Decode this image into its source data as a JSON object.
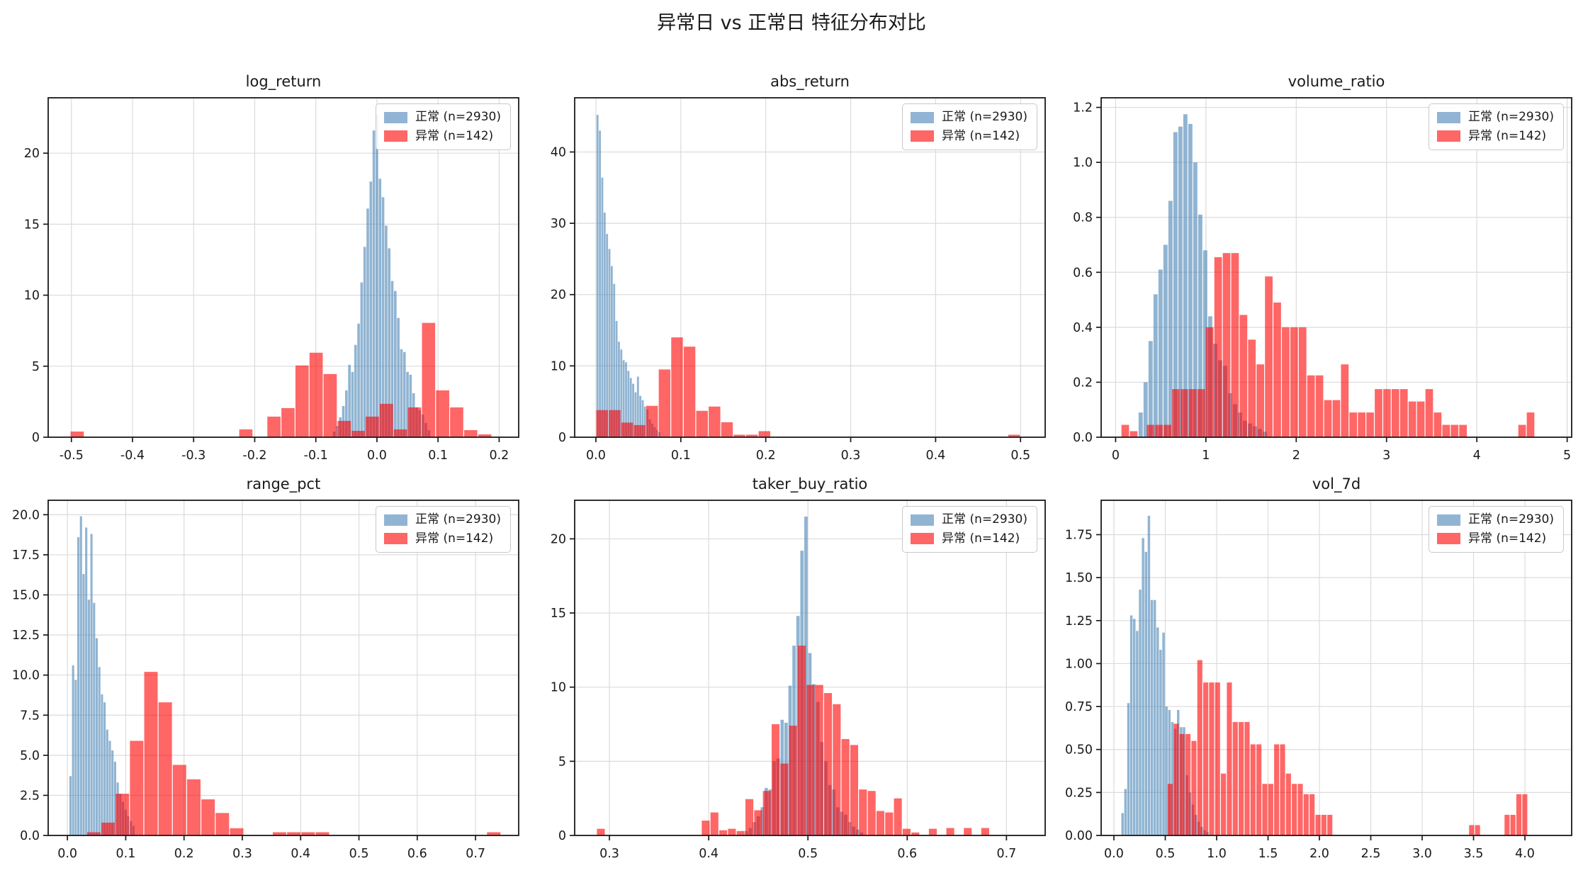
{
  "figure_title": "异常日 vs 正常日 特征分布对比",
  "legend": {
    "normal_label": "正常 (n=2930)",
    "abnormal_label": "异常 (n=142)"
  },
  "colors": {
    "normal": "#4682B4",
    "abnormal": "#FF0000",
    "bar_alpha": 0.6,
    "normal_legend": "#92B4D4",
    "abnormal_legend": "#FF6666",
    "grid": "#DBDBDB",
    "axis": "#1A1A1A"
  },
  "chart_data": [
    {
      "type": "histogram",
      "title": "log_return",
      "xlabel": "",
      "ylabel": "",
      "grid": true,
      "legend_position": "upper right",
      "xlim": [
        -0.538,
        0.232
      ],
      "ylim": [
        0,
        23.9
      ],
      "xtick_vals": [
        -0.5,
        -0.4,
        -0.3,
        -0.2,
        -0.1,
        0.0,
        0.1,
        0.2
      ],
      "xtick_labels": [
        "-0.5",
        "-0.4",
        "-0.3",
        "-0.2",
        "-0.1",
        "0.0",
        "0.1",
        "0.2"
      ],
      "ytick_vals": [
        0,
        5,
        10,
        15,
        20
      ],
      "ytick_labels": [
        "0",
        "5",
        "10",
        "15",
        "20"
      ],
      "series": [
        {
          "name": "正常 (n=2930)",
          "color_key": "normal",
          "start": -0.0725,
          "bin_width": 0.005,
          "heights": [
            0.4,
            0.8,
            1.4,
            2.2,
            3.3,
            5.1,
            4.6,
            6.5,
            8.0,
            10.9,
            13.4,
            16.1,
            18.0,
            21.6,
            22.7,
            18.2,
            16.9,
            14.9,
            13.3,
            11.0,
            10.3,
            8.4,
            6.2,
            6.0,
            4.6,
            4.4,
            3.1,
            2.1,
            1.9,
            1.6,
            1.0,
            0.5
          ]
        },
        {
          "name": "异常 (n=142)",
          "color_key": "abnormal",
          "start": -0.502,
          "bin_width": 0.023,
          "heights": [
            0.4,
            0,
            0,
            0,
            0,
            0,
            0,
            0,
            0,
            0,
            0,
            0,
            0.55,
            0,
            1.45,
            2.05,
            5.05,
            5.95,
            4.45,
            1.15,
            0.45,
            1.45,
            2.35,
            0.55,
            2.1,
            8.05,
            3.3,
            2.1,
            0.5,
            0.2
          ]
        }
      ]
    },
    {
      "type": "histogram",
      "title": "abs_return",
      "xlabel": "",
      "ylabel": "",
      "grid": true,
      "legend_position": "upper right",
      "xlim": [
        -0.025,
        0.529
      ],
      "ylim": [
        0,
        47.6
      ],
      "xtick_vals": [
        0.0,
        0.1,
        0.2,
        0.3,
        0.4,
        0.5
      ],
      "xtick_labels": [
        "0.0",
        "0.1",
        "0.2",
        "0.3",
        "0.4",
        "0.5"
      ],
      "ytick_vals": [
        0,
        10,
        20,
        30,
        40
      ],
      "ytick_labels": [
        "0",
        "10",
        "20",
        "30",
        "40"
      ],
      "series": [
        {
          "name": "正常 (n=2930)",
          "color_key": "normal",
          "start": 0.0005,
          "bin_width": 0.0028,
          "heights": [
            45.2,
            43.0,
            36.4,
            31.5,
            28.5,
            26.4,
            24.0,
            21.5,
            16.3,
            13.4,
            12.3,
            10.8,
            10.5,
            9.3,
            8.3,
            7.5,
            6.3,
            8.5,
            5.8,
            5.2,
            4.3,
            3.9,
            2.5,
            1.9,
            1.4,
            1.0,
            0.7
          ]
        },
        {
          "name": "异常 (n=142)",
          "color_key": "abnormal",
          "start": 0.0,
          "bin_width": 0.0147,
          "heights": [
            3.8,
            3.8,
            2.05,
            1.7,
            4.4,
            9.5,
            14.0,
            12.7,
            3.7,
            4.3,
            2.1,
            0.35,
            0.35,
            0.85,
            0,
            0,
            0,
            0,
            0,
            0,
            0,
            0,
            0,
            0,
            0,
            0,
            0,
            0,
            0,
            0,
            0,
            0,
            0,
            0.35
          ]
        }
      ]
    },
    {
      "type": "histogram",
      "title": "volume_ratio",
      "xlabel": "",
      "ylabel": "",
      "grid": true,
      "legend_position": "upper right",
      "xlim": [
        -0.16,
        5.05
      ],
      "ylim": [
        0,
        1.235
      ],
      "xtick_vals": [
        0,
        1,
        2,
        3,
        4,
        5
      ],
      "xtick_labels": [
        "0",
        "1",
        "2",
        "3",
        "4",
        "5"
      ],
      "ytick_vals": [
        0.0,
        0.2,
        0.4,
        0.6,
        0.8,
        1.0,
        1.2
      ],
      "ytick_labels": [
        "0.0",
        "0.2",
        "0.4",
        "0.6",
        "0.8",
        "1.0",
        "1.2"
      ],
      "series": [
        {
          "name": "正常 (n=2930)",
          "color_key": "normal",
          "start": 0.25,
          "bin_width": 0.055,
          "heights": [
            0.09,
            0.2,
            0.35,
            0.52,
            0.61,
            0.7,
            0.86,
            1.11,
            1.13,
            1.175,
            1.14,
            1.0,
            0.81,
            0.68,
            0.44,
            0.34,
            0.28,
            0.26,
            0.16,
            0.12,
            0.09,
            0.06,
            0.05,
            0.04,
            0.03,
            0.02
          ]
        },
        {
          "name": "异常 (n=142)",
          "color_key": "abnormal",
          "start": 0.06,
          "bin_width": 0.0935,
          "heights": [
            0.045,
            0.022,
            0,
            0.045,
            0.045,
            0.045,
            0.175,
            0.175,
            0.175,
            0.175,
            0.4,
            0.655,
            0.67,
            0.67,
            0.445,
            0.355,
            0.265,
            0.585,
            0.49,
            0.4,
            0.4,
            0.4,
            0.225,
            0.225,
            0.135,
            0.135,
            0.265,
            0.09,
            0.09,
            0.09,
            0.175,
            0.175,
            0.175,
            0.175,
            0.13,
            0.13,
            0.175,
            0.09,
            0.045,
            0.045,
            0.045,
            0,
            0,
            0,
            0,
            0,
            0,
            0.045,
            0.09,
            0
          ]
        }
      ]
    },
    {
      "type": "histogram",
      "title": "range_pct",
      "xlabel": "",
      "ylabel": "",
      "grid": true,
      "legend_position": "upper right",
      "xlim": [
        -0.033,
        0.774
      ],
      "ylim": [
        0,
        20.9
      ],
      "xtick_vals": [
        0.0,
        0.1,
        0.2,
        0.3,
        0.4,
        0.5,
        0.6,
        0.7
      ],
      "xtick_labels": [
        "0.0",
        "0.1",
        "0.2",
        "0.3",
        "0.4",
        "0.5",
        "0.6",
        "0.7"
      ],
      "ytick_vals": [
        0.0,
        2.5,
        5.0,
        7.5,
        10.0,
        12.5,
        15.0,
        17.5,
        20.0
      ],
      "ytick_labels": [
        "0.0",
        "2.5",
        "5.0",
        "7.5",
        "10.0",
        "12.5",
        "15.0",
        "17.5",
        "20.0"
      ],
      "series": [
        {
          "name": "正常 (n=2930)",
          "color_key": "normal",
          "start": 0.003,
          "bin_width": 0.0045,
          "heights": [
            3.7,
            10.6,
            9.7,
            18.6,
            19.9,
            16.3,
            19.2,
            14.7,
            18.8,
            14.5,
            12.3,
            10.5,
            8.8,
            8.3,
            6.6,
            5.9,
            5.3,
            4.6,
            3.3,
            2.6,
            2.1,
            1.6,
            1.2,
            0.9,
            0.6
          ]
        },
        {
          "name": "异常 (n=142)",
          "color_key": "abnormal",
          "start": 0.033,
          "bin_width": 0.0245,
          "heights": [
            0.2,
            0.8,
            2.6,
            5.9,
            10.2,
            8.3,
            4.4,
            3.5,
            2.25,
            1.4,
            0.45,
            0,
            0,
            0.2,
            0.2,
            0.2,
            0.2,
            0,
            0,
            0,
            0,
            0,
            0,
            0,
            0,
            0,
            0,
            0,
            0.2
          ]
        }
      ]
    },
    {
      "type": "histogram",
      "title": "taker_buy_ratio",
      "xlabel": "",
      "ylabel": "",
      "grid": true,
      "legend_position": "upper right",
      "xlim": [
        0.265,
        0.739
      ],
      "ylim": [
        0,
        22.6
      ],
      "xtick_vals": [
        0.3,
        0.4,
        0.5,
        0.6,
        0.7
      ],
      "xtick_labels": [
        "0.3",
        "0.4",
        "0.5",
        "0.6",
        "0.7"
      ],
      "ytick_vals": [
        0,
        5,
        10,
        15,
        20
      ],
      "ytick_labels": [
        "0",
        "5",
        "10",
        "15",
        "20"
      ],
      "series": [
        {
          "name": "正常 (n=2930)",
          "color_key": "normal",
          "start": 0.436,
          "bin_width": 0.004,
          "heights": [
            0.3,
            0.5,
            0.9,
            1.3,
            1.9,
            3.2,
            3.1,
            5.0,
            5.2,
            7.8,
            7.6,
            10.1,
            12.8,
            14.8,
            19.2,
            21.5,
            12.3,
            10.2,
            9.0,
            6.3,
            5.0,
            3.4,
            3.1,
            1.9,
            1.6,
            1.4,
            0.9,
            0.6,
            0.4,
            0.2
          ]
        },
        {
          "name": "异常 (n=142)",
          "color_key": "abnormal",
          "start": 0.287,
          "bin_width": 0.0088,
          "heights": [
            0.45,
            0,
            0,
            0,
            0,
            0,
            0,
            0,
            0,
            0,
            0,
            0,
            1.0,
            1.55,
            0.35,
            0.45,
            0.3,
            2.45,
            1.7,
            3.0,
            7.5,
            4.85,
            7.4,
            12.8,
            10.15,
            10.15,
            9.6,
            8.85,
            6.5,
            6.1,
            3.1,
            3.0,
            1.65,
            1.55,
            2.5,
            0.45,
            0.2,
            0,
            0.45,
            0,
            0.5,
            0,
            0.5,
            0,
            0.5
          ]
        }
      ]
    },
    {
      "type": "histogram",
      "title": "vol_7d",
      "xlabel": "",
      "ylabel": "",
      "grid": true,
      "legend_position": "upper right",
      "xlim": [
        -0.124,
        4.455
      ],
      "ylim": [
        0,
        1.95
      ],
      "xtick_vals": [
        0.0,
        0.5,
        1.0,
        1.5,
        2.0,
        2.5,
        3.0,
        3.5,
        4.0
      ],
      "xtick_labels": [
        "0.0",
        "0.5",
        "1.0",
        "1.5",
        "2.0",
        "2.5",
        "3.0",
        "3.5",
        "4.0"
      ],
      "ytick_vals": [
        0.0,
        0.25,
        0.5,
        0.75,
        1.0,
        1.25,
        1.5,
        1.75
      ],
      "ytick_labels": [
        "0.00",
        "0.25",
        "0.50",
        "0.75",
        "1.00",
        "1.25",
        "1.50",
        "1.75"
      ],
      "series": [
        {
          "name": "正常 (n=2930)",
          "color_key": "normal",
          "start": 0.07,
          "bin_width": 0.0285,
          "heights": [
            0.13,
            0.27,
            0.77,
            1.28,
            1.26,
            1.19,
            1.43,
            1.73,
            1.65,
            1.86,
            1.37,
            1.37,
            1.21,
            1.08,
            1.18,
            0.75,
            0.73,
            0.66,
            0.62,
            0.73,
            0.63,
            0.63,
            0.35,
            0.25,
            0.18,
            0.12,
            0.08,
            0.05,
            0.03,
            0.02
          ]
        },
        {
          "name": "异常 (n=142)",
          "color_key": "abnormal",
          "start": 0.52,
          "bin_width": 0.0575,
          "heights": [
            0.3,
            0.65,
            0.59,
            0.59,
            0.55,
            1.02,
            0.89,
            0.89,
            0.89,
            0.36,
            0.89,
            0.66,
            0.66,
            0.66,
            0.53,
            0.53,
            0.3,
            0.3,
            0.53,
            0.53,
            0.36,
            0.3,
            0.3,
            0.24,
            0.24,
            0.12,
            0.12,
            0.12,
            0,
            0,
            0,
            0,
            0,
            0,
            0,
            0,
            0,
            0,
            0,
            0,
            0,
            0,
            0,
            0,
            0,
            0,
            0,
            0,
            0,
            0,
            0,
            0.06,
            0.06,
            0,
            0,
            0,
            0,
            0.12,
            0.12,
            0.24,
            0.24
          ]
        }
      ]
    }
  ]
}
